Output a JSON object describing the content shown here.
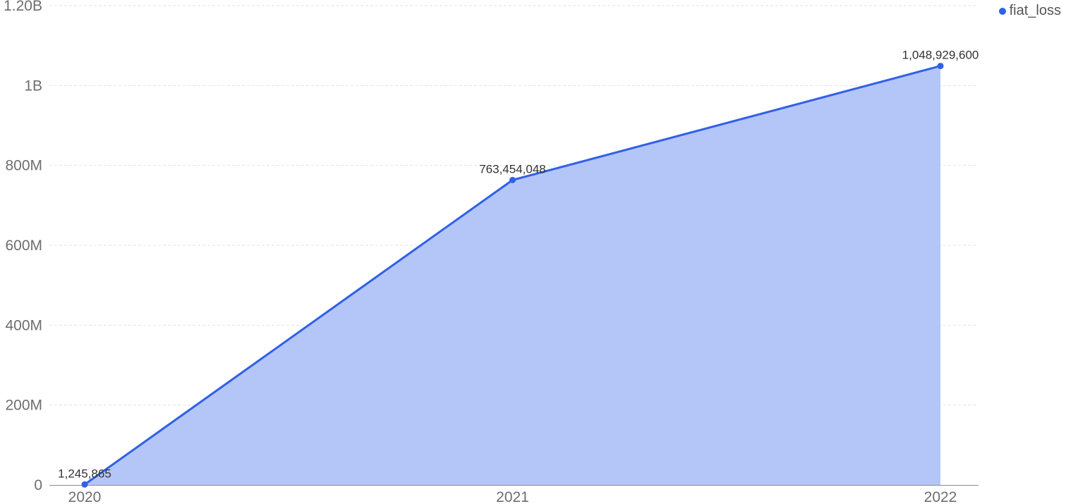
{
  "chart_data": {
    "type": "area",
    "x": [
      "2020",
      "2021",
      "2022"
    ],
    "series": [
      {
        "name": "fiat_loss",
        "values": [
          1245865,
          763454048,
          1048929600
        ],
        "labels": [
          "1,245,865",
          "763,454,048",
          "1,048,929,600"
        ]
      }
    ],
    "ylim": [
      0,
      1200000000
    ],
    "yticks": [
      0,
      200000000,
      400000000,
      600000000,
      800000000,
      1000000000,
      1200000000
    ],
    "ytick_labels": [
      "0",
      "200M",
      "400M",
      "600M",
      "800M",
      "1B",
      "1.20B"
    ],
    "grid": true,
    "legend_position": "top-right",
    "colors": {
      "line": "#3060e8",
      "fill": "#b4c6f8",
      "point": "#3060e8"
    }
  }
}
